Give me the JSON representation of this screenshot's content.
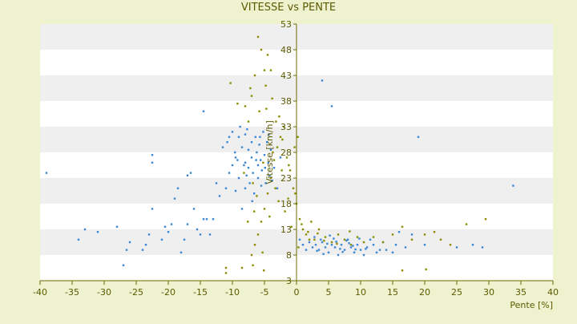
{
  "chart_data": {
    "type": "scatter",
    "title": "VITESSE vs PENTE",
    "xlabel": "Pente [%]",
    "ylabel": "Vitesse [km/h]",
    "xlim": [
      -40,
      40
    ],
    "ylim": [
      3,
      53
    ],
    "x_ticks": [
      -40,
      -35,
      -30,
      -25,
      -20,
      -15,
      -10,
      -5,
      0,
      5,
      10,
      15,
      20,
      25,
      30,
      35,
      40
    ],
    "y_ticks": [
      3,
      8,
      13,
      18,
      23,
      28,
      33,
      38,
      43,
      48,
      53
    ],
    "grid": "horizontal bands",
    "legend": "none",
    "colors": {
      "background": "#eef2cf",
      "band_light": "#ffffff",
      "band_dark": "#efefef",
      "axis": "#6b6b00",
      "text": "#5c5a00",
      "series_blue": "#3a86d6",
      "series_olive": "#8c8c00"
    },
    "series": [
      {
        "color": "#3a86d6",
        "points": [
          [
            -39,
            24
          ],
          [
            -34,
            11
          ],
          [
            -33,
            13
          ],
          [
            -31,
            12.5
          ],
          [
            -28,
            13.5
          ],
          [
            -27,
            6
          ],
          [
            -26.5,
            9
          ],
          [
            -26,
            10.5
          ],
          [
            -24,
            9
          ],
          [
            -23.5,
            10
          ],
          [
            -23,
            12
          ],
          [
            -22.5,
            17
          ],
          [
            -22.5,
            26
          ],
          [
            -22.5,
            27.5
          ],
          [
            -21,
            11
          ],
          [
            -20.5,
            13.5
          ],
          [
            -20,
            12.5
          ],
          [
            -19.5,
            14
          ],
          [
            -19,
            19
          ],
          [
            -18.5,
            21
          ],
          [
            -18,
            8.5
          ],
          [
            -17.5,
            11
          ],
          [
            -17,
            14
          ],
          [
            -17,
            23.5
          ],
          [
            -16.5,
            24
          ],
          [
            -16,
            17
          ],
          [
            -15.5,
            13
          ],
          [
            -15,
            12
          ],
          [
            -14.5,
            15
          ],
          [
            -14.5,
            36
          ],
          [
            -14,
            15
          ],
          [
            -13.5,
            12
          ],
          [
            -13,
            15
          ],
          [
            -12.5,
            22
          ],
          [
            -12,
            19.5
          ],
          [
            -11.5,
            29
          ],
          [
            -11,
            21
          ],
          [
            -10.5,
            31
          ],
          [
            -10.5,
            24
          ],
          [
            -10,
            32
          ],
          [
            -10,
            25.5
          ],
          [
            -9.5,
            27
          ],
          [
            -9.5,
            20.5
          ],
          [
            -9,
            31
          ],
          [
            -9,
            23
          ],
          [
            -8.8,
            33
          ],
          [
            -8.5,
            29
          ],
          [
            -8.5,
            17
          ],
          [
            -8,
            31.5
          ],
          [
            -8,
            26
          ],
          [
            -8,
            21
          ],
          [
            -7.7,
            32.5
          ],
          [
            -7.5,
            28.5
          ],
          [
            -7.5,
            25
          ],
          [
            -7.3,
            22
          ],
          [
            -7,
            30
          ],
          [
            -7,
            27
          ],
          [
            -6.8,
            24
          ],
          [
            -6.6,
            20
          ],
          [
            -6.4,
            31
          ],
          [
            -6.2,
            28
          ],
          [
            -6,
            25.5
          ],
          [
            -6,
            23
          ],
          [
            -5.8,
            29.5
          ],
          [
            -5.6,
            26.5
          ],
          [
            -5.4,
            24.5
          ],
          [
            -5.2,
            32
          ],
          [
            -5,
            27.5
          ],
          [
            -4.8,
            22
          ],
          [
            -4.6,
            30
          ],
          [
            -4.4,
            26
          ],
          [
            -4.2,
            23.5
          ],
          [
            -4,
            28.5
          ],
          [
            -3.5,
            25
          ],
          [
            -3,
            21
          ],
          [
            -2.5,
            27
          ],
          [
            -9.6,
            28
          ],
          [
            -8.2,
            25.5
          ],
          [
            -6.9,
            18.5
          ],
          [
            -5.5,
            21.5
          ],
          [
            -4.3,
            31.5
          ],
          [
            -3.8,
            22.5
          ],
          [
            -10.8,
            30
          ],
          [
            -9.2,
            26.5
          ],
          [
            -7.8,
            23.5
          ],
          [
            -6.3,
            26.5
          ],
          [
            -5.7,
            31
          ],
          [
            -4.9,
            25
          ],
          [
            0.5,
            11
          ],
          [
            1,
            10
          ],
          [
            1.5,
            9
          ],
          [
            2,
            10.5
          ],
          [
            2.5,
            9.5
          ],
          [
            3,
            10
          ],
          [
            3.5,
            9
          ],
          [
            4,
            10.5
          ],
          [
            4.5,
            9.5
          ],
          [
            5,
            8.5
          ],
          [
            5.5,
            10
          ],
          [
            6,
            9.5
          ],
          [
            6.5,
            8
          ],
          [
            7,
            10
          ],
          [
            7.5,
            9
          ],
          [
            8,
            11
          ],
          [
            8.5,
            9.5
          ],
          [
            9,
            8.5
          ],
          [
            9.5,
            10
          ],
          [
            10,
            9
          ],
          [
            10.5,
            8
          ],
          [
            11,
            9.5
          ],
          [
            11.5,
            11
          ],
          [
            12,
            10
          ],
          [
            12.5,
            8.5
          ],
          [
            13,
            9
          ],
          [
            13.5,
            10.5
          ],
          [
            14,
            9
          ],
          [
            15,
            8.5
          ],
          [
            15.5,
            10
          ],
          [
            16,
            12.5
          ],
          [
            17,
            9.5
          ],
          [
            18,
            12
          ],
          [
            4,
            42
          ],
          [
            5.5,
            37
          ],
          [
            19,
            31
          ],
          [
            20,
            10
          ],
          [
            25,
            9.5
          ],
          [
            27.5,
            10
          ],
          [
            29,
            9.5
          ],
          [
            33.8,
            21.5
          ],
          [
            3.8,
            11
          ],
          [
            4.8,
            10.2
          ],
          [
            5.8,
            11.2
          ],
          [
            6.8,
            9.2
          ],
          [
            7.8,
            10.8
          ],
          [
            8.8,
            9.8
          ],
          [
            9.8,
            11.2
          ],
          [
            10.8,
            9.2
          ],
          [
            2.8,
            11.5
          ],
          [
            3.2,
            8.8
          ],
          [
            4.2,
            8.2
          ],
          [
            5.2,
            11.8
          ],
          [
            6.2,
            10.6
          ],
          [
            7.2,
            8.6
          ],
          [
            8.2,
            10.3
          ],
          [
            9.2,
            9.1
          ]
        ]
      },
      {
        "color": "#8c8c00",
        "points": [
          [
            -11,
            4.5
          ],
          [
            -11,
            5.5
          ],
          [
            -8.5,
            5.5
          ],
          [
            -7,
            8
          ],
          [
            -6.5,
            10
          ],
          [
            -6,
            12
          ],
          [
            -5.5,
            14.5
          ],
          [
            -5,
            17
          ],
          [
            -4.5,
            20
          ],
          [
            -4,
            23
          ],
          [
            -3.5,
            26.5
          ],
          [
            -3,
            29
          ],
          [
            -2.5,
            31
          ],
          [
            -2,
            33
          ],
          [
            -1.5,
            27
          ],
          [
            -1,
            24.5
          ],
          [
            -0.5,
            21
          ],
          [
            0,
            18
          ],
          [
            0.5,
            15
          ],
          [
            1,
            13
          ],
          [
            1.5,
            12
          ],
          [
            2,
            11
          ],
          [
            -4,
            44
          ],
          [
            -4.5,
            47
          ],
          [
            -5,
            44
          ],
          [
            -5.5,
            48
          ],
          [
            -6,
            50.5
          ],
          [
            -6.5,
            43
          ],
          [
            -7,
            39
          ],
          [
            -7.5,
            34
          ],
          [
            -8,
            37
          ],
          [
            -5.8,
            36
          ],
          [
            -4.8,
            41
          ],
          [
            -3.8,
            38.5
          ],
          [
            -3.2,
            34
          ],
          [
            -2.2,
            30.5
          ],
          [
            -1.2,
            25.5
          ],
          [
            -0.2,
            20
          ],
          [
            0.8,
            14
          ],
          [
            1.8,
            12.5
          ],
          [
            2.8,
            11
          ],
          [
            3.5,
            13
          ],
          [
            4.5,
            11.5
          ],
          [
            5.5,
            10.5
          ],
          [
            6.5,
            12
          ],
          [
            7.5,
            11
          ],
          [
            8.5,
            10
          ],
          [
            9.5,
            11.5
          ],
          [
            10.5,
            10.5
          ],
          [
            12,
            11.5
          ],
          [
            13.5,
            10.5
          ],
          [
            15,
            12
          ],
          [
            16.5,
            13.5
          ],
          [
            18,
            11
          ],
          [
            20,
            12
          ],
          [
            21.5,
            12.5
          ],
          [
            22.5,
            11
          ],
          [
            24,
            10
          ],
          [
            26.5,
            14
          ],
          [
            29.5,
            15
          ],
          [
            16.5,
            5
          ],
          [
            20.2,
            5.2
          ],
          [
            -10.3,
            41.5
          ],
          [
            -7.2,
            40.5
          ],
          [
            -9.2,
            37.5
          ],
          [
            -8.2,
            24
          ],
          [
            -6.2,
            19.5
          ],
          [
            -4.2,
            15.5
          ],
          [
            -2.8,
            18.5
          ],
          [
            -1.8,
            16.5
          ],
          [
            -0.8,
            13.5
          ],
          [
            0.3,
            9.5
          ],
          [
            -0.3,
            29
          ],
          [
            0.2,
            31
          ],
          [
            -6.8,
            22
          ],
          [
            -5.2,
            26
          ],
          [
            -3.3,
            21
          ],
          [
            -2.3,
            24.5
          ],
          [
            -1.3,
            19
          ],
          [
            -7.6,
            14.5
          ],
          [
            -6.6,
            16.5
          ],
          [
            -3.7,
            28
          ],
          [
            -2.7,
            35
          ],
          [
            -4.7,
            36.5
          ],
          [
            2.3,
            14.5
          ],
          [
            3.3,
            12.2
          ],
          [
            4.3,
            10.8
          ],
          [
            6.3,
            10.2
          ],
          [
            8.3,
            12.6
          ],
          [
            -5.3,
            8.5
          ],
          [
            -6.8,
            6
          ],
          [
            -5.1,
            5
          ]
        ]
      }
    ]
  }
}
